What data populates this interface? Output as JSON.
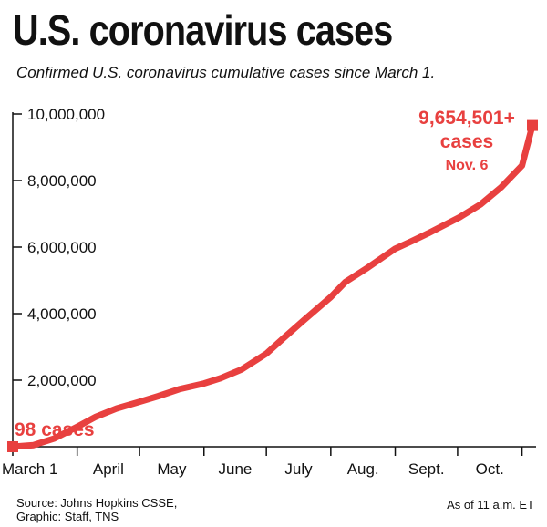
{
  "header": {
    "title": "U.S. coronavirus cases",
    "subtitle": "Confirmed U.S. coronavirus cumulative cases since March 1."
  },
  "footer": {
    "source_line1": "Source: Johns Hopkins CSSE,",
    "source_line2": "Graphic: Staff, TNS",
    "as_of": "As of 11 a.m. ET"
  },
  "colors": {
    "line": "#e8403f",
    "axis": "#111111"
  },
  "chart_data": {
    "type": "line",
    "title": "U.S. coronavirus cases",
    "subtitle": "Confirmed U.S. coronavirus cumulative cases since March 1.",
    "xlabel": "",
    "ylabel": "",
    "ylim": [
      0,
      10000000
    ],
    "y_ticks": [
      {
        "value": 2000000,
        "label": "2,000,000"
      },
      {
        "value": 4000000,
        "label": "4,000,000"
      },
      {
        "value": 6000000,
        "label": "6,000,000"
      },
      {
        "value": 8000000,
        "label": "8,000,000"
      },
      {
        "value": 10000000,
        "label": "10,000,000"
      }
    ],
    "x_ticks": [
      "March 1",
      "April",
      "May",
      "June",
      "July",
      "Aug.",
      "Sept.",
      "Oct."
    ],
    "x_range_days": [
      0,
      250
    ],
    "grid": false,
    "series": [
      {
        "x": [
          0,
          10,
          20,
          31,
          40,
          50,
          61,
          70,
          80,
          92,
          100,
          110,
          122,
          130,
          140,
          153,
          160,
          170,
          184,
          192,
          200,
          215,
          225,
          235,
          245,
          250
        ],
        "y": [
          98,
          50000,
          250000,
          600000,
          900000,
          1150000,
          1350000,
          1520000,
          1730000,
          1900000,
          2060000,
          2320000,
          2800000,
          3250000,
          3800000,
          4500000,
          4950000,
          5350000,
          5950000,
          6180000,
          6420000,
          6900000,
          7280000,
          7800000,
          8450000,
          9654501
        ]
      }
    ],
    "annotations": {
      "start_label": "98 cases",
      "end_label_line1": "9,654,501+",
      "end_label_line2": "cases",
      "end_label_line3": "Nov. 6"
    }
  }
}
